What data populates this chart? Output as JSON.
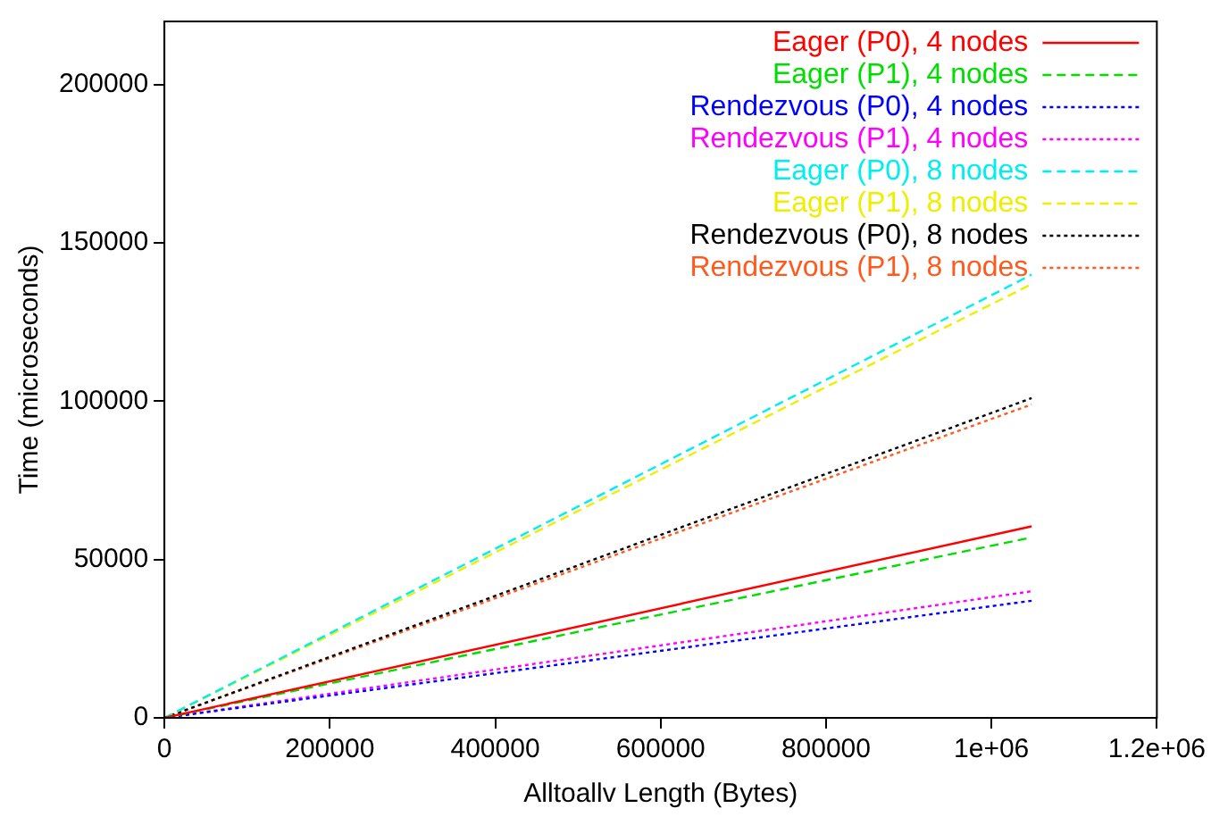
{
  "chart_data": {
    "type": "line",
    "xlabel": "Alltoallv Length (Bytes)",
    "ylabel": "Time (microseconds)",
    "xlim": [
      0,
      1200000
    ],
    "xticks": [
      0,
      200000,
      400000,
      600000,
      800000,
      {
        "value": 1000000,
        "label": "1e+06"
      },
      {
        "value": 1200000,
        "label": "1.2e+06"
      }
    ],
    "ylim": [
      0,
      220000
    ],
    "yticks": [
      0,
      50000,
      100000,
      150000,
      200000
    ],
    "x": [
      0,
      1048576
    ],
    "legend": "top right",
    "grid": false,
    "marker": "none",
    "series": [
      {
        "name": "Eager (P0), 4 nodes",
        "color": "#ff0000",
        "line_style": "solid",
        "values": [
          0,
          60500
        ]
      },
      {
        "name": "Eager (P1), 4 nodes",
        "color": "#00dd00",
        "line_style": "dashed",
        "values": [
          0,
          57000
        ]
      },
      {
        "name": "Rendezvous (P0), 4 nodes",
        "color": "#0000ff",
        "line_style": "dotted",
        "values": [
          0,
          37000
        ]
      },
      {
        "name": "Rendezvous (P1), 4 nodes",
        "color": "#ff00ff",
        "line_style": "dotted",
        "values": [
          0,
          40000
        ]
      },
      {
        "name": "Eager (P0), 8 nodes",
        "color": "#00eeee",
        "line_style": "dashed",
        "values": [
          0,
          140000
        ]
      },
      {
        "name": "Eager (P1), 8 nodes",
        "color": "#eeee00",
        "line_style": "dashed",
        "values": [
          0,
          137000
        ]
      },
      {
        "name": "Rendezvous (P0), 8 nodes",
        "color": "#000000",
        "line_style": "dotted",
        "values": [
          0,
          101000
        ]
      },
      {
        "name": "Rendezvous (P1), 8 nodes",
        "color": "#ff5a1e",
        "line_style": "dotted",
        "values": [
          0,
          99000
        ]
      }
    ]
  }
}
